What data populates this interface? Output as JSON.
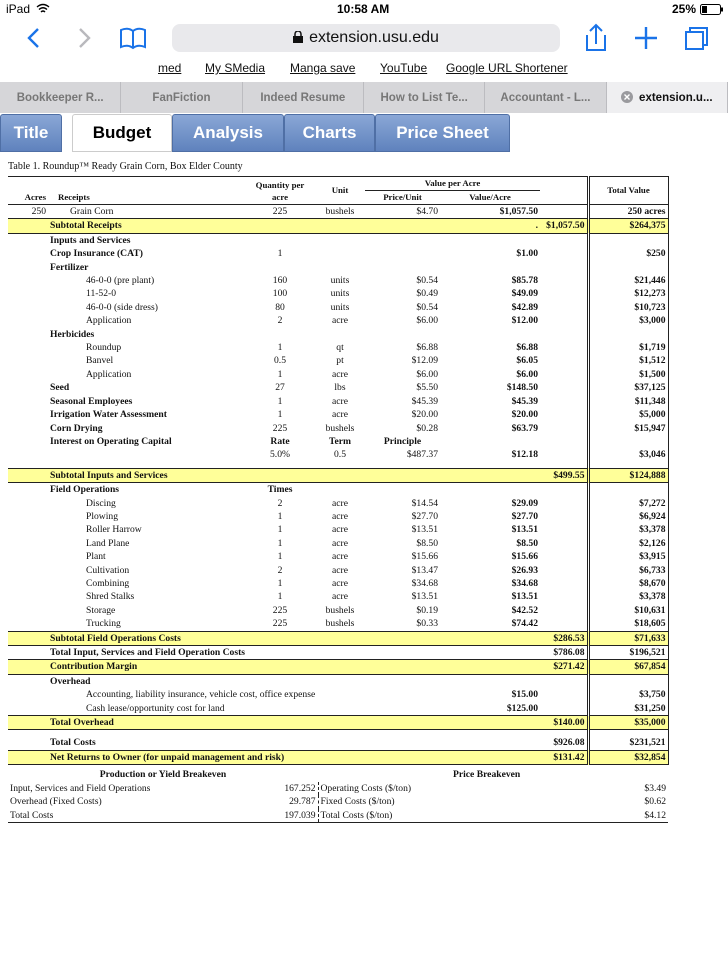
{
  "status": {
    "device": "iPad",
    "time": "10:58 AM",
    "battery": "25%"
  },
  "browser": {
    "url": "extension.usu.edu",
    "bookmarks": [
      "med",
      "My SMedia",
      "Manga save",
      "YouTube",
      "Google URL Shortener"
    ],
    "tabs": [
      "Bookkeeper R...",
      "FanFiction",
      "Indeed Resume",
      "How to List Te...",
      "Accountant - L...",
      "extension.u..."
    ]
  },
  "sheet_tabs": [
    "Title",
    "Budget",
    "Analysis",
    "Charts",
    "Price Sheet"
  ],
  "table": {
    "caption": "Table 1. Roundup™ Ready Grain Corn, Box Elder County",
    "header": {
      "acres": "Acres",
      "receipts": "Receipts",
      "quantity": "Quantity per acre",
      "unit": "Unit",
      "value_per_acre": "Value per Acre",
      "price_unit": "Price/Unit",
      "value_acre": "Value/Acre",
      "total_value": "Total Value"
    },
    "rows": [
      [
        "250",
        "Grain Corn",
        "225",
        "bushels",
        "$4.70",
        "$1,057.50",
        null,
        "250 acres"
      ],
      [
        null,
        "Subtotal Receipts",
        null,
        null,
        null,
        ".",
        "$1,057.50",
        "$264,375"
      ],
      [
        null,
        "Inputs and Services",
        null,
        null,
        null,
        null,
        null,
        null
      ],
      [
        null,
        "Crop Insurance (CAT)",
        "1",
        null,
        null,
        "$1.00",
        null,
        "$250"
      ],
      [
        null,
        "Fertilizer",
        null,
        null,
        null,
        null,
        null,
        null
      ],
      [
        null,
        "46-0-0 (pre plant)",
        "160",
        "units",
        "$0.54",
        "$85.78",
        null,
        "$21,446"
      ],
      [
        null,
        "11-52-0",
        "100",
        "units",
        "$0.49",
        "$49.09",
        null,
        "$12,273"
      ],
      [
        null,
        "46-0-0 (side dress)",
        "80",
        "units",
        "$0.54",
        "$42.89",
        null,
        "$10,723"
      ],
      [
        null,
        "Application",
        "2",
        "acre",
        "$6.00",
        "$12.00",
        null,
        "$3,000"
      ],
      [
        null,
        "Herbicides",
        null,
        null,
        null,
        null,
        null,
        null
      ],
      [
        null,
        "Roundup",
        "1",
        "qt",
        "$6.88",
        "$6.88",
        null,
        "$1,719"
      ],
      [
        null,
        "Banvel",
        "0.5",
        "pt",
        "$12.09",
        "$6.05",
        null,
        "$1,512"
      ],
      [
        null,
        "Application",
        "1",
        "acre",
        "$6.00",
        "$6.00",
        null,
        "$1,500"
      ],
      [
        null,
        "Seed",
        "27",
        "lbs",
        "$5.50",
        "$148.50",
        null,
        "$37,125"
      ],
      [
        null,
        "Seasonal Employees",
        "1",
        "acre",
        "$45.39",
        "$45.39",
        null,
        "$11,348"
      ],
      [
        null,
        "Irrigation Water Assessment",
        "1",
        "acre",
        "$20.00",
        "$20.00",
        null,
        "$5,000"
      ],
      [
        null,
        "Corn Drying",
        "225",
        "bushels",
        "$0.28",
        "$63.79",
        null,
        "$15,947"
      ],
      [
        null,
        "Interest on Operating Capital",
        "Rate",
        "Term",
        "Principle",
        null,
        null,
        null
      ],
      [
        null,
        null,
        "5.0%",
        "0.5",
        "$487.37",
        "$12.18",
        null,
        "$3,046"
      ],
      [
        null,
        "Subtotal Inputs and Services",
        null,
        null,
        null,
        null,
        "$499.55",
        "$124,888"
      ],
      [
        null,
        "Field Operations",
        "Times",
        null,
        null,
        null,
        null,
        null
      ],
      [
        null,
        "Discing",
        "2",
        "acre",
        "$14.54",
        "$29.09",
        null,
        "$7,272"
      ],
      [
        null,
        "Plowing",
        "1",
        "acre",
        "$27.70",
        "$27.70",
        null,
        "$6,924"
      ],
      [
        null,
        "Roller Harrow",
        "1",
        "acre",
        "$13.51",
        "$13.51",
        null,
        "$3,378"
      ],
      [
        null,
        "Land Plane",
        "1",
        "acre",
        "$8.50",
        "$8.50",
        null,
        "$2,126"
      ],
      [
        null,
        "Plant",
        "1",
        "acre",
        "$15.66",
        "$15.66",
        null,
        "$3,915"
      ],
      [
        null,
        "Cultivation",
        "2",
        "acre",
        "$13.47",
        "$26.93",
        null,
        "$6,733"
      ],
      [
        null,
        "Combining",
        "1",
        "acre",
        "$34.68",
        "$34.68",
        null,
        "$8,670"
      ],
      [
        null,
        "Shred Stalks",
        "1",
        "acre",
        "$13.51",
        "$13.51",
        null,
        "$3,378"
      ],
      [
        null,
        "Storage",
        "225",
        "bushels",
        "$0.19",
        "$42.52",
        null,
        "$10,631"
      ],
      [
        null,
        "Trucking",
        "225",
        "bushels",
        "$0.33",
        "$74.42",
        null,
        "$18,605"
      ],
      [
        null,
        "Subtotal Field Operations  Costs",
        null,
        null,
        null,
        null,
        "$286.53",
        "$71,633"
      ],
      [
        null,
        "Total Input, Services and Field Operation Costs",
        null,
        null,
        null,
        null,
        "$786.08",
        "$196,521"
      ],
      [
        null,
        "Contribution Margin",
        null,
        null,
        null,
        null,
        "$271.42",
        "$67,854"
      ],
      [
        null,
        "Overhead",
        null,
        null,
        null,
        null,
        null,
        null
      ],
      [
        null,
        "Accounting, liability insurance, vehicle cost, office expense",
        null,
        null,
        null,
        "$15.00",
        null,
        "$3,750"
      ],
      [
        null,
        "Cash lease/opportunity cost for land",
        null,
        null,
        null,
        "$125.00",
        null,
        "$31,250"
      ],
      [
        null,
        "Total Overhead",
        null,
        null,
        null,
        null,
        "$140.00",
        "$35,000"
      ],
      [
        null,
        "Total Costs",
        null,
        null,
        null,
        null,
        "$926.08",
        "$231,521"
      ],
      [
        null,
        "Net Returns to Owner (for unpaid management and risk)",
        null,
        null,
        null,
        null,
        "$131.42",
        "$32,854"
      ]
    ],
    "breakeven": {
      "headers": [
        "Production or Yield Breakeven",
        "Price Breakeven"
      ],
      "rows": [
        [
          "Input, Services and Field Operations",
          "167.252",
          "Operating Costs ($/ton)",
          "$3.49"
        ],
        [
          "Overhead (Fixed Costs)",
          "29.787",
          "Fixed Costs ($/ton)",
          "$0.62"
        ],
        [
          "Total Costs",
          "197.039",
          "Total Costs ($/ton)",
          "$4.12"
        ]
      ]
    }
  }
}
